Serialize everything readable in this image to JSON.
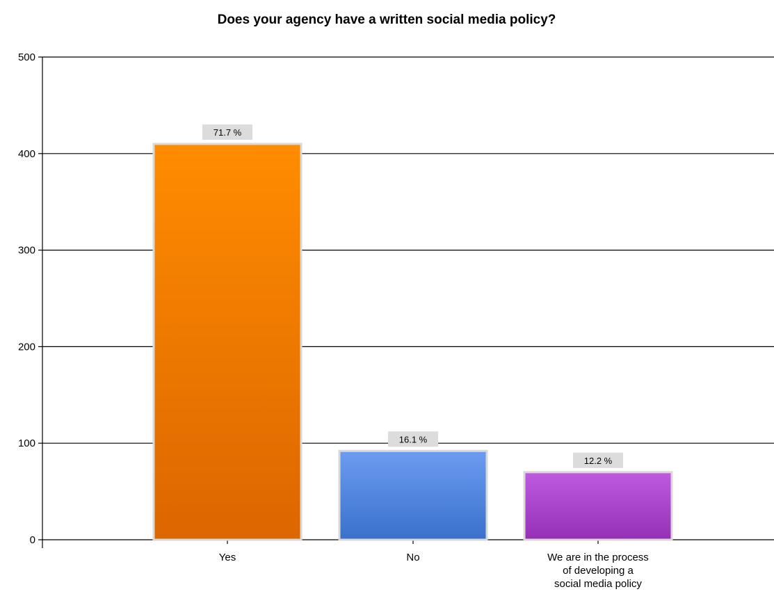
{
  "chart_data": {
    "type": "bar",
    "title": "Does your agency have a written social media policy?",
    "xlabel": "",
    "ylabel": "",
    "ylim": [
      0,
      500
    ],
    "yticks": [
      0,
      100,
      200,
      300,
      400,
      500
    ],
    "grid": true,
    "legend": "none",
    "categories": [
      [
        "Yes"
      ],
      [
        "No"
      ],
      [
        "We are in the process",
        "of developing a",
        "social media policy"
      ]
    ],
    "values": [
      410,
      92,
      70
    ],
    "data_labels": [
      "71.7 %",
      "16.1 %",
      "12.2 %"
    ],
    "colors": [
      {
        "top": "#ff8c00",
        "bottom": "#dc6600"
      },
      {
        "top": "#6b9cf0",
        "bottom": "#3a70cc"
      },
      {
        "top": "#bf5be0",
        "bottom": "#9530b5"
      }
    ]
  }
}
